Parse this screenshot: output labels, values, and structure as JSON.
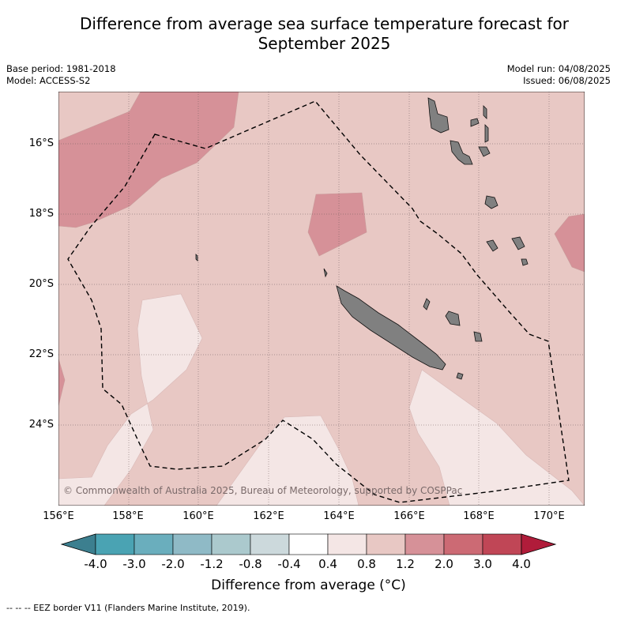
{
  "title_line1": "Difference from average sea surface temperature forecast for",
  "title_line2": "September 2025",
  "base_period": "Base period: 1981-2018",
  "model": "Model: ACCESS-S2",
  "model_run": "Model run: 04/08/2025",
  "issued": "Issued: 06/08/2025",
  "copyright": "© Commonwealth of Australia 2025, Bureau of Meteorology, supported by COSPPac",
  "lon_ticks": [
    "156°E",
    "158°E",
    "160°E",
    "162°E",
    "164°E",
    "166°E",
    "168°E",
    "170°E"
  ],
  "lat_ticks": [
    "16°S",
    "18°S",
    "20°S",
    "22°S",
    "24°S"
  ],
  "colorbar": {
    "tick_labels": [
      "-4.0",
      "-3.0",
      "-2.0",
      "-1.2",
      "-0.8",
      "-0.4",
      "0.4",
      "0.8",
      "1.2",
      "2.0",
      "3.0",
      "4.0"
    ],
    "colors": [
      "#3c7f8f",
      "#4aa3b3",
      "#6aaebd",
      "#8fbac6",
      "#abc9cd",
      "#ccd9dc",
      "#ffffff",
      "#f4e6e5",
      "#e8c8c4",
      "#d69198",
      "#cc6a74",
      "#c04656",
      "#b01c3a"
    ],
    "label": "Difference from average (°C)"
  },
  "footer": "-- -- -- EEZ border V11 (Flanders Marine Institute, 2019)."
}
